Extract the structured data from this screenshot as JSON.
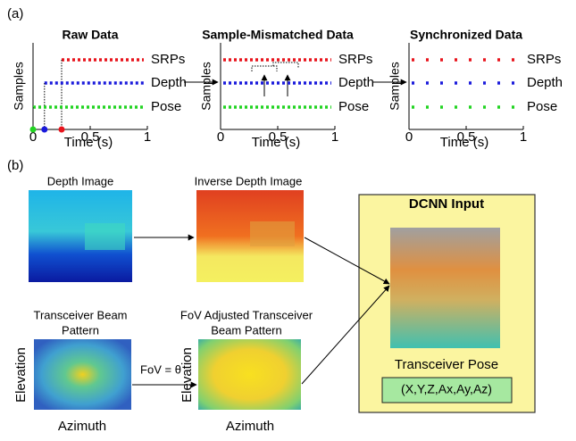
{
  "panel_a": {
    "label": "(a)",
    "plots": [
      {
        "title": "Raw Data",
        "xlabel": "Time (s)",
        "ylabel": "Samples",
        "xticks": [
          0,
          0.5,
          1
        ],
        "series": [
          {
            "name": "SRPs",
            "color": "#e8141c",
            "start": 0.25
          },
          {
            "name": "Depth",
            "color": "#1a1adc",
            "start": 0.1
          },
          {
            "name": "Pose",
            "color": "#22d422",
            "start": 0
          }
        ]
      },
      {
        "title": "Sample-Mismatched Data",
        "xlabel": "Time (s)",
        "ylabel": "Samples",
        "xticks": [
          0,
          0.5,
          1
        ],
        "series": [
          {
            "name": "SRPs",
            "color": "#e8141c",
            "start": 0
          },
          {
            "name": "Depth",
            "color": "#1a1adc",
            "start": 0
          },
          {
            "name": "Pose",
            "color": "#22d422",
            "start": 0
          }
        ]
      },
      {
        "title": "Synchronized Data",
        "xlabel": "Time (s)",
        "ylabel": "Samples",
        "xticks": [
          0,
          0.5,
          1
        ],
        "series": [
          {
            "name": "SRPs",
            "color": "#e8141c",
            "start": 0
          },
          {
            "name": "Depth",
            "color": "#1a1adc",
            "start": 0
          },
          {
            "name": "Pose",
            "color": "#22d422",
            "start": 0
          }
        ]
      }
    ]
  },
  "panel_b": {
    "label": "(b)",
    "depth_image": "Depth Image",
    "inverse_depth_image": "Inverse Depth Image",
    "beam_pattern": [
      "Transceiver Beam",
      "Pattern"
    ],
    "fov_beam_pattern": [
      "FoV Adjusted Transceiver",
      "Beam Pattern"
    ],
    "elevation": "Elevation",
    "azimuth": "Azimuth",
    "fov_label": "FoV = θ",
    "dcnn_title": "DCNN Input",
    "pose_title": "Transceiver Pose",
    "pose_vector": "(X,Y,Z,Ax,Ay,Az)"
  }
}
